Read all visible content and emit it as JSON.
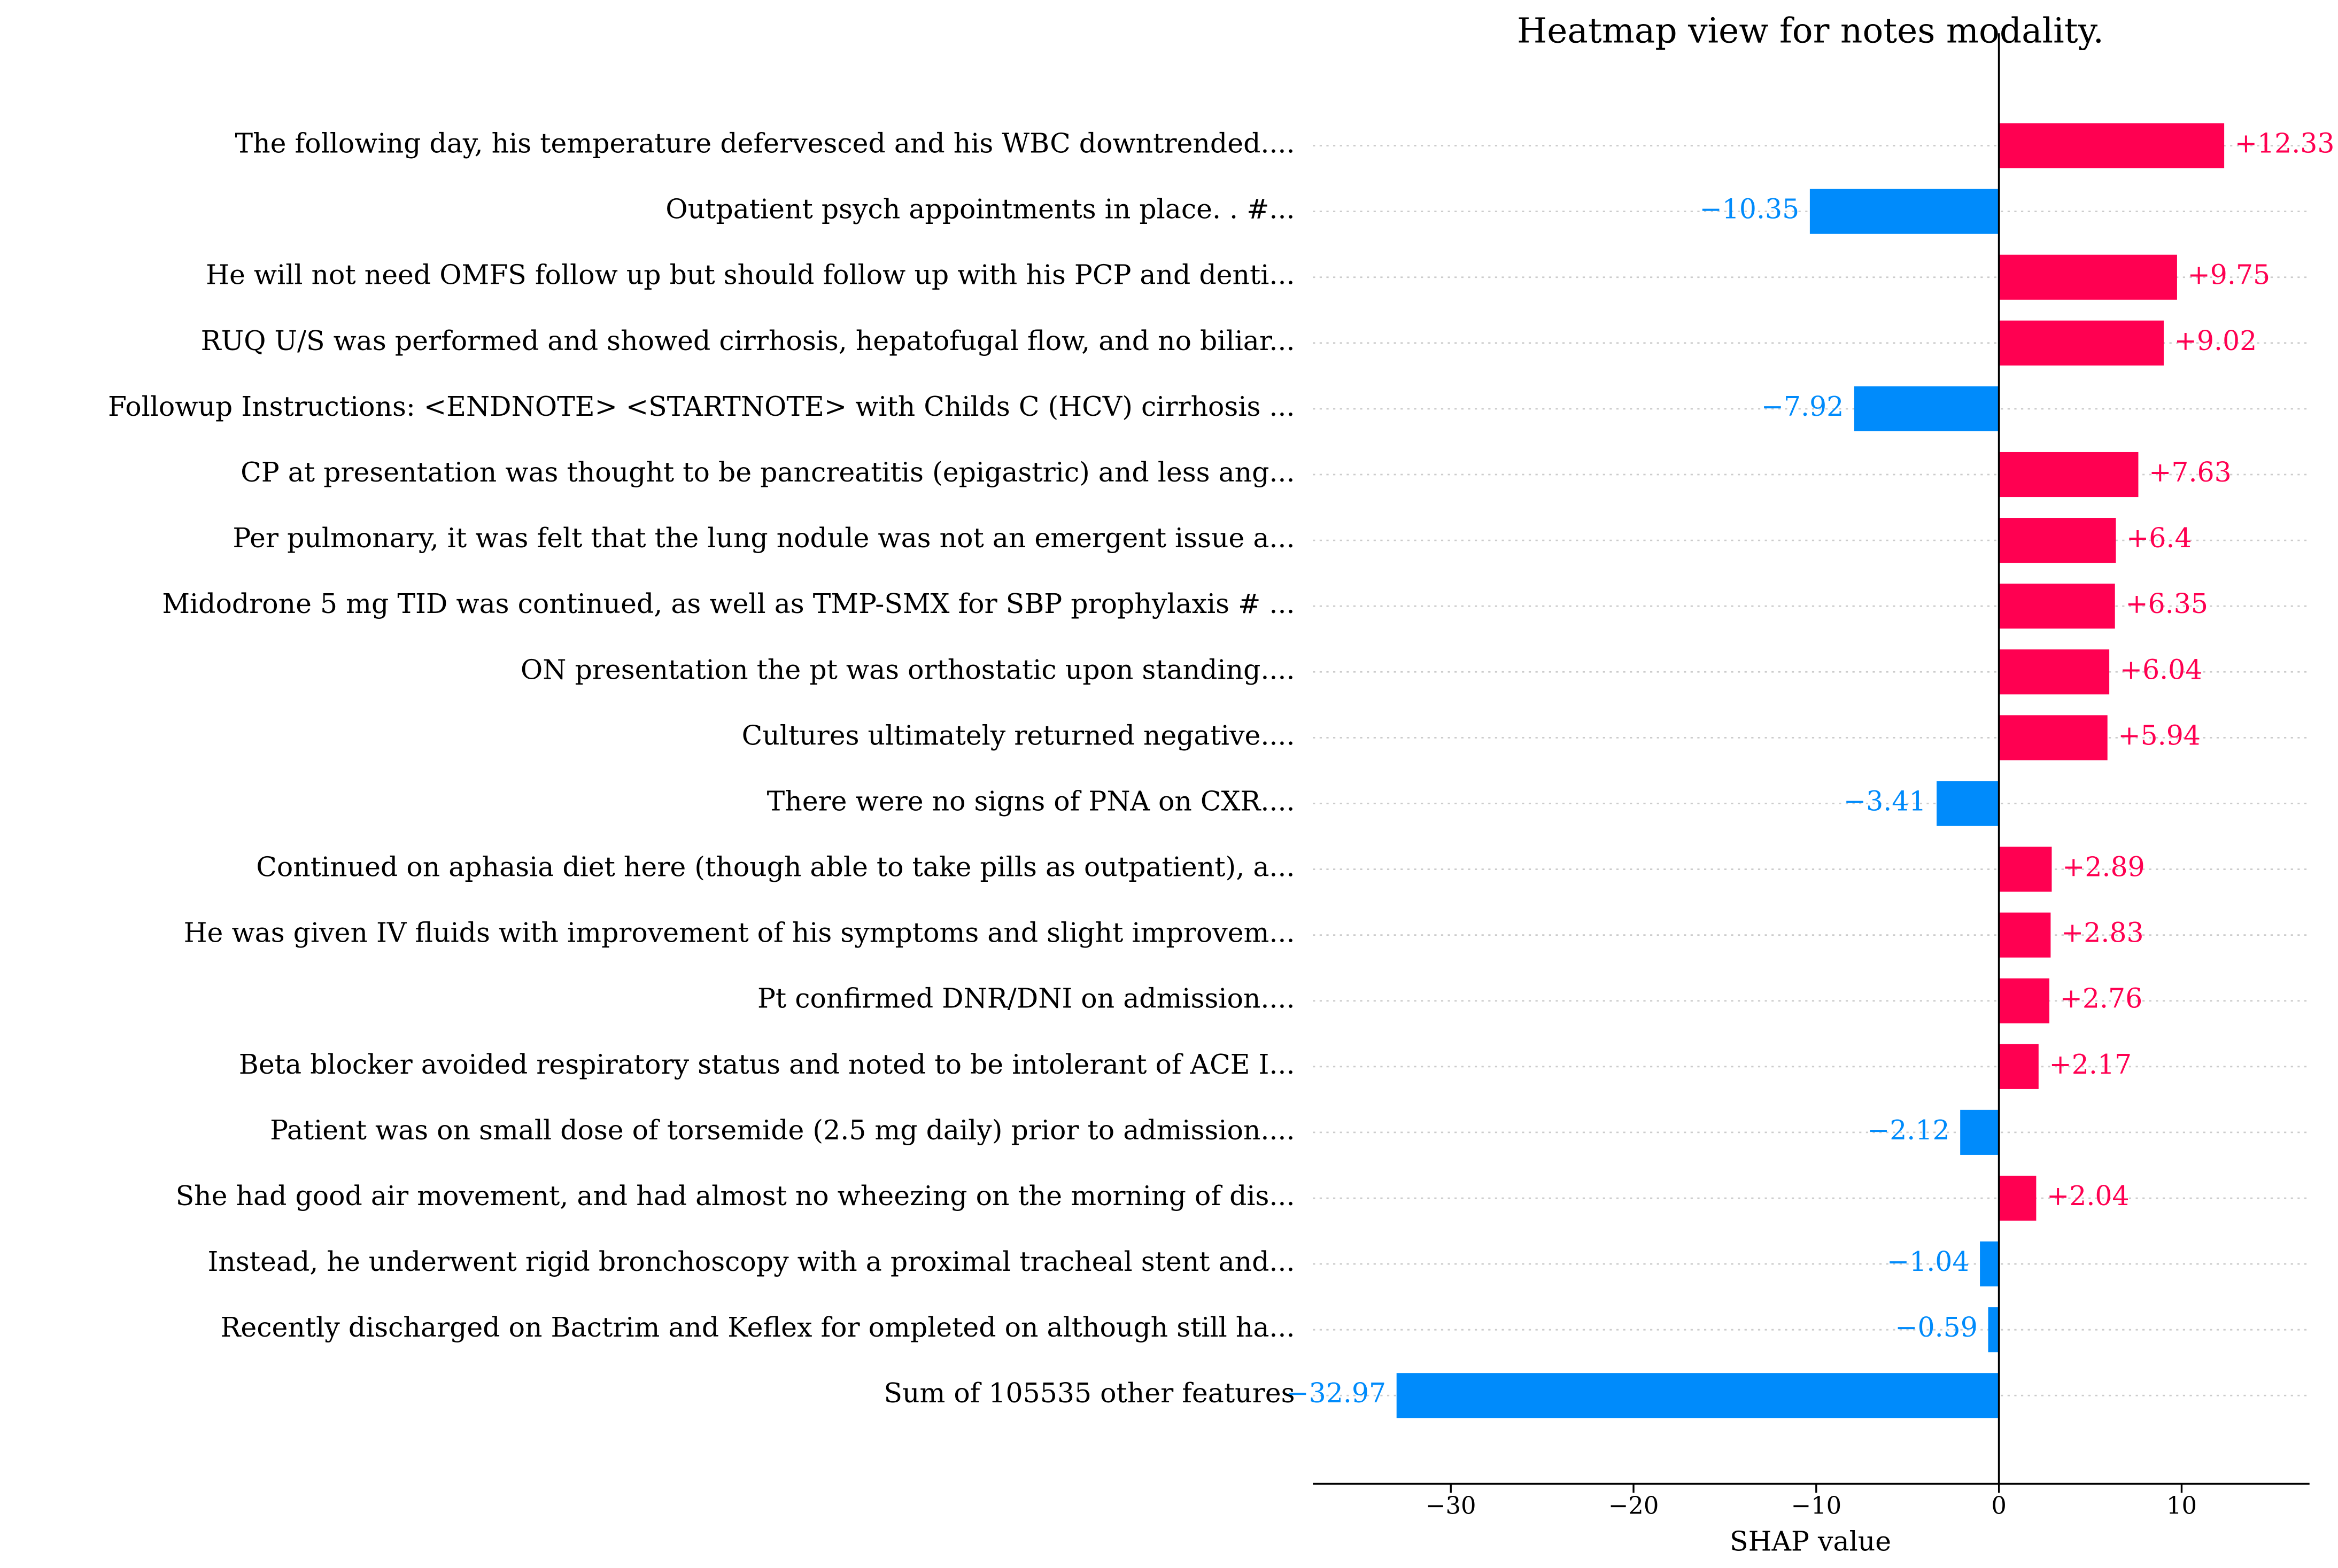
{
  "chart_data": {
    "type": "bar",
    "orientation": "horizontal",
    "title": "Heatmap view for notes modality.",
    "xlabel": "SHAP value",
    "categories": [
      "The following day, his temperature defervesced and his WBC downtrended....",
      "Outpatient psych appointments in place. . #...",
      "He will not need OMFS follow up but should follow up with his PCP and denti...",
      "RUQ U/S was performed and showed cirrhosis, hepatofugal flow, and no biliar...",
      "Followup Instructions: <ENDNOTE> <STARTNOTE> with Childs C (HCV) cirrhosis ...",
      "CP at presentation was thought to be pancreatitis (epigastric) and less ang...",
      "Per pulmonary, it was felt that the lung nodule was not an emergent issue a...",
      "Midodrone 5 mg TID was continued, as well as TMP-SMX for SBP prophylaxis # ...",
      "ON presentation the pt was orthostatic upon standing....",
      "Cultures ultimately returned negative....",
      "There were no signs of PNA on CXR....",
      "Continued on aphasia diet here (though able to take pills as outpatient), a...",
      "He was given IV fluids with improvement of his symptoms and slight improvem...",
      "Pt confirmed DNR/DNI on admission....",
      "Beta blocker avoided respiratory status and noted to be intolerant of ACE I...",
      "Patient was on small dose of torsemide (2.5 mg daily) prior to admission....",
      "She had good air movement, and had almost no wheezing on the morning of dis...",
      "Instead, he underwent rigid bronchoscopy with a proximal tracheal stent and...",
      "Recently discharged on Bactrim and Keflex for ompleted on although still ha...",
      "Sum of 105535 other features"
    ],
    "values": [
      12.33,
      -10.35,
      9.75,
      9.02,
      -7.92,
      7.63,
      6.4,
      6.35,
      6.04,
      5.94,
      -3.41,
      2.89,
      2.83,
      2.76,
      2.17,
      -2.12,
      2.04,
      -1.04,
      -0.59,
      -32.97
    ],
    "value_labels": [
      "+12.33",
      "−10.35",
      "+9.75",
      "+9.02",
      "−7.92",
      "+7.63",
      "+6.4",
      "+6.35",
      "+6.04",
      "+5.94",
      "−3.41",
      "+2.89",
      "+2.83",
      "+2.76",
      "+2.17",
      "−2.12",
      "+2.04",
      "−1.04",
      "−0.59",
      "−32.97"
    ],
    "positive_color": "#ff0051",
    "negative_color": "#008bfb",
    "xlim": [
      -37.55,
      17
    ],
    "xticks": [
      {
        "value": -30,
        "label": "−30"
      },
      {
        "value": -20,
        "label": "−20"
      },
      {
        "value": -10,
        "label": "−10"
      },
      0,
      10
    ],
    "grid": true
  }
}
